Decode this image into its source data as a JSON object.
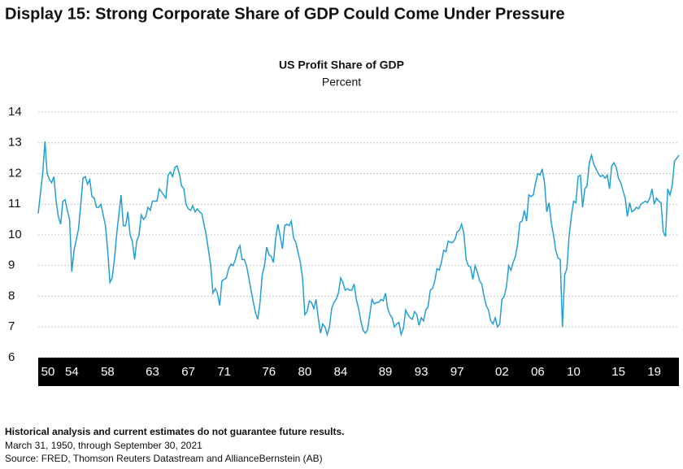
{
  "header": {
    "title": "Display 15: Strong Corporate Share of GDP Could Come Under Pressure"
  },
  "chart_data": {
    "type": "line",
    "title": "US Profit Share of GDP",
    "subtitle": "Percent",
    "color": "#239fd3",
    "grid": true,
    "xlim": [
      1950.25,
      2021.75
    ],
    "ylim": [
      6,
      14
    ],
    "yticks": [
      6,
      7,
      8,
      9,
      10,
      11,
      12,
      13,
      14
    ],
    "xticks": [
      {
        "value": 1950,
        "label": "50"
      },
      {
        "value": 1954,
        "label": "54"
      },
      {
        "value": 1958,
        "label": "58"
      },
      {
        "value": 1963,
        "label": "63"
      },
      {
        "value": 1967,
        "label": "67"
      },
      {
        "value": 1971,
        "label": "71"
      },
      {
        "value": 1976,
        "label": "76"
      },
      {
        "value": 1980,
        "label": "80"
      },
      {
        "value": 1984,
        "label": "84"
      },
      {
        "value": 1989,
        "label": "89"
      },
      {
        "value": 1993,
        "label": "93"
      },
      {
        "value": 1997,
        "label": "97"
      },
      {
        "value": 2002,
        "label": "02"
      },
      {
        "value": 2006,
        "label": "06"
      },
      {
        "value": 2010,
        "label": "10"
      },
      {
        "value": 2015,
        "label": "15"
      },
      {
        "value": 2019,
        "label": "19"
      }
    ],
    "x": [
      1950.25,
      1950.75,
      1951.0,
      1951.25,
      1951.5,
      1951.75,
      1952,
      1952.25,
      1952.5,
      1952.75,
      1953,
      1953.25,
      1953.5,
      1953.75,
      1954,
      1954.25,
      1954.75,
      1955,
      1955.25,
      1955.5,
      1955.75,
      1956,
      1956.25,
      1956.5,
      1956.75,
      1957,
      1957.25,
      1957.75,
      1958,
      1958.25,
      1958.5,
      1958.75,
      1959,
      1959.5,
      1959.75,
      1960,
      1960.25,
      1960.5,
      1960.75,
      1961,
      1961.25,
      1961.5,
      1961.75,
      1962,
      1962.25,
      1962.5,
      1962.75,
      1963,
      1963.25,
      1963.5,
      1963.75,
      1964,
      1964.5,
      1964.75,
      1965,
      1965.25,
      1965.5,
      1965.75,
      1966,
      1966.25,
      1966.5,
      1966.75,
      1967,
      1967.25,
      1967.5,
      1967.75,
      1968,
      1968.25,
      1968.5,
      1969,
      1969.5,
      1969.75,
      1970,
      1970.25,
      1970.5,
      1970.75,
      1971,
      1971.25,
      1971.5,
      1971.75,
      1972,
      1972.25,
      1972.5,
      1972.75,
      1973,
      1973.25,
      1973.5,
      1973.75,
      1974,
      1974.5,
      1974.75,
      1975,
      1975.25,
      1975.5,
      1975.75,
      1976,
      1976.25,
      1976.5,
      1976.75,
      1977,
      1977.25,
      1977.5,
      1977.75,
      1978,
      1978.25,
      1978.5,
      1978.75,
      1979,
      1979.5,
      1979.75,
      1980,
      1980.25,
      1980.5,
      1980.75,
      1981,
      1981.25,
      1981.5,
      1981.75,
      1982,
      1982.25,
      1982.5,
      1982.75,
      1983,
      1983.25,
      1983.5,
      1983.75,
      1984,
      1984.25,
      1984.5,
      1984.75,
      1985,
      1985.25,
      1985.5,
      1985.75,
      1986,
      1986.25,
      1986.5,
      1986.75,
      1987,
      1987.25,
      1987.5,
      1987.75,
      1988,
      1988.25,
      1988.5,
      1988.75,
      1989,
      1989.25,
      1989.5,
      1989.75,
      1990,
      1990.25,
      1990.5,
      1990.75,
      1991,
      1991.25,
      1991.5,
      1991.75,
      1992,
      1992.25,
      1992.5,
      1992.75,
      1993,
      1993.25,
      1993.5,
      1993.75,
      1994,
      1994.25,
      1994.5,
      1994.75,
      1995,
      1995.25,
      1995.5,
      1995.75,
      1996,
      1996.25,
      1996.5,
      1996.75,
      1997,
      1997.25,
      1997.5,
      1997.75,
      1998,
      1998.25,
      1998.5,
      1998.75,
      1999,
      1999.25,
      1999.5,
      1999.75,
      2000,
      2000.25,
      2000.5,
      2000.75,
      2001,
      2001.25,
      2001.5,
      2001.75,
      2002,
      2002.25,
      2002.5,
      2002.75,
      2003,
      2003.25,
      2003.5,
      2003.75,
      2004,
      2004.25,
      2004.5,
      2004.75,
      2005,
      2005.25,
      2005.5,
      2005.75,
      2006,
      2006.25,
      2006.5,
      2006.75,
      2007,
      2007.25,
      2007.5,
      2007.75,
      2008,
      2008.25,
      2008.5,
      2008.75,
      2009,
      2009.25,
      2009.5,
      2009.75,
      2010,
      2010.25,
      2010.5,
      2010.75,
      2011,
      2011.25,
      2011.5,
      2011.75,
      2012,
      2012.25,
      2012.5,
      2012.75,
      2013,
      2013.25,
      2013.5,
      2013.75,
      2014,
      2014.25,
      2014.5,
      2014.75,
      2015,
      2015.25,
      2015.5,
      2015.75,
      2016,
      2016.25,
      2016.5,
      2016.75,
      2017,
      2017.25,
      2017.5,
      2017.75,
      2018,
      2018.25,
      2018.5,
      2018.75,
      2019,
      2019.25,
      2019.5,
      2019.75,
      2020,
      2020.25,
      2020.5,
      2020.75,
      2021,
      2021.25,
      2021.75
    ],
    "values": [
      10.7,
      12.0,
      13.05,
      12.0,
      11.8,
      11.7,
      11.9,
      11.1,
      10.6,
      10.35,
      11.1,
      11.15,
      10.8,
      10.5,
      8.8,
      9.5,
      10.2,
      11.0,
      11.85,
      11.9,
      11.65,
      11.8,
      11.25,
      11.2,
      10.9,
      10.9,
      11.0,
      10.3,
      9.5,
      8.45,
      8.6,
      9.2,
      10.0,
      11.3,
      10.3,
      10.3,
      10.75,
      10.0,
      9.8,
      9.2,
      9.8,
      10.0,
      10.65,
      10.5,
      10.6,
      10.9,
      10.8,
      11.1,
      11.1,
      11.1,
      11.5,
      11.4,
      11.2,
      11.95,
      12.05,
      11.9,
      12.2,
      12.25,
      12.0,
      11.6,
      11.5,
      11.0,
      10.85,
      10.8,
      10.95,
      10.75,
      10.85,
      10.75,
      10.7,
      10.0,
      9.0,
      8.1,
      8.25,
      8.1,
      7.7,
      8.5,
      8.55,
      8.6,
      8.9,
      9.05,
      9.0,
      9.2,
      9.5,
      9.65,
      9.2,
      9.2,
      9.0,
      8.6,
      8.2,
      7.45,
      7.25,
      7.8,
      8.7,
      9.0,
      9.6,
      9.35,
      9.3,
      9.1,
      9.9,
      10.35,
      9.95,
      9.55,
      10.3,
      10.35,
      10.3,
      10.45,
      9.9,
      9.75,
      9.1,
      8.6,
      7.4,
      7.5,
      7.85,
      7.8,
      7.6,
      7.9,
      7.3,
      6.8,
      7.1,
      7.0,
      6.75,
      7.0,
      7.6,
      7.8,
      7.9,
      8.1,
      8.6,
      8.45,
      8.2,
      8.25,
      8.2,
      8.2,
      8.4,
      7.9,
      7.6,
      7.2,
      6.9,
      6.8,
      6.9,
      7.4,
      7.9,
      7.75,
      7.8,
      7.8,
      7.9,
      7.85,
      8.1,
      7.6,
      7.4,
      7.3,
      7.0,
      7.1,
      7.15,
      6.75,
      6.95,
      7.55,
      7.4,
      7.3,
      7.25,
      7.5,
      7.4,
      7.05,
      7.3,
      7.2,
      7.55,
      7.65,
      8.2,
      8.25,
      8.5,
      8.9,
      8.85,
      9.1,
      9.5,
      9.45,
      9.8,
      9.75,
      9.75,
      9.85,
      10.1,
      10.15,
      10.35,
      10.05,
      9.2,
      9.0,
      8.95,
      8.55,
      9.0,
      8.8,
      8.5,
      8.4,
      8.0,
      7.7,
      7.55,
      7.2,
      7.1,
      7.3,
      7.0,
      7.1,
      7.9,
      8.0,
      8.3,
      9.0,
      8.85,
      9.1,
      9.3,
      9.7,
      10.4,
      10.45,
      10.8,
      10.45,
      11.3,
      11.25,
      11.3,
      11.7,
      12.0,
      11.95,
      12.15,
      11.7,
      10.75,
      11.05,
      10.4,
      10.0,
      9.5,
      9.25,
      9.2,
      7.0,
      8.7,
      8.9,
      10.0,
      10.6,
      11.1,
      11.05,
      11.9,
      11.95,
      10.9,
      11.5,
      11.6,
      12.35,
      12.6,
      12.3,
      12.15,
      12.0,
      11.9,
      11.95,
      11.85,
      11.95,
      11.5,
      12.25,
      12.35,
      12.2,
      11.85,
      11.7,
      11.45,
      11.2,
      10.6,
      11.05,
      10.75,
      10.8,
      10.9,
      10.85,
      11.0,
      11.05,
      11.1,
      11.05,
      11.2,
      11.5,
      11.0,
      11.2,
      11.1,
      11.05,
      10.1,
      9.95,
      11.5,
      11.3,
      11.6,
      12.4,
      12.6
    ]
  },
  "footer": {
    "disclaimer": "Historical analysis and current estimates do not guarantee future results.",
    "period": "March 31, 1950, through September 30, 2021",
    "source": "Source: FRED, Thomson Reuters Datastream and AllianceBernstein (AB)"
  }
}
